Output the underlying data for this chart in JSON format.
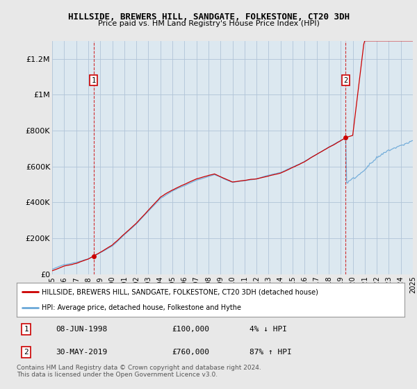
{
  "title": "HILLSIDE, BREWERS HILL, SANDGATE, FOLKESTONE, CT20 3DH",
  "subtitle": "Price paid vs. HM Land Registry's House Price Index (HPI)",
  "background_color": "#e8e8e8",
  "plot_bg_color": "#dce8f0",
  "ylim": [
    0,
    1300000
  ],
  "yticks": [
    0,
    200000,
    400000,
    600000,
    800000,
    1000000,
    1200000
  ],
  "ytick_labels": [
    "£0",
    "£200K",
    "£400K",
    "£600K",
    "£800K",
    "£1M",
    "£1.2M"
  ],
  "xmin_year": 1995,
  "xmax_year": 2025,
  "xticks": [
    1995,
    1996,
    1997,
    1998,
    1999,
    2000,
    2001,
    2002,
    2003,
    2004,
    2005,
    2006,
    2007,
    2008,
    2009,
    2010,
    2011,
    2012,
    2013,
    2014,
    2015,
    2016,
    2017,
    2018,
    2019,
    2020,
    2021,
    2022,
    2023,
    2024,
    2025
  ],
  "marker1_year": 1998.44,
  "marker1_price": 100000,
  "marker2_year": 2019.41,
  "marker2_price": 760000,
  "legend_line1": "HILLSIDE, BREWERS HILL, SANDGATE, FOLKESTONE, CT20 3DH (detached house)",
  "legend_line2": "HPI: Average price, detached house, Folkestone and Hythe",
  "footnote": "Contains HM Land Registry data © Crown copyright and database right 2024.\nThis data is licensed under the Open Government Licence v3.0.",
  "red_line_color": "#cc0000",
  "blue_line_color": "#6aa8d8",
  "dashed_line_color": "#cc0000",
  "marker_dot_color": "#cc0000",
  "grid_color": "#b0c4d8"
}
